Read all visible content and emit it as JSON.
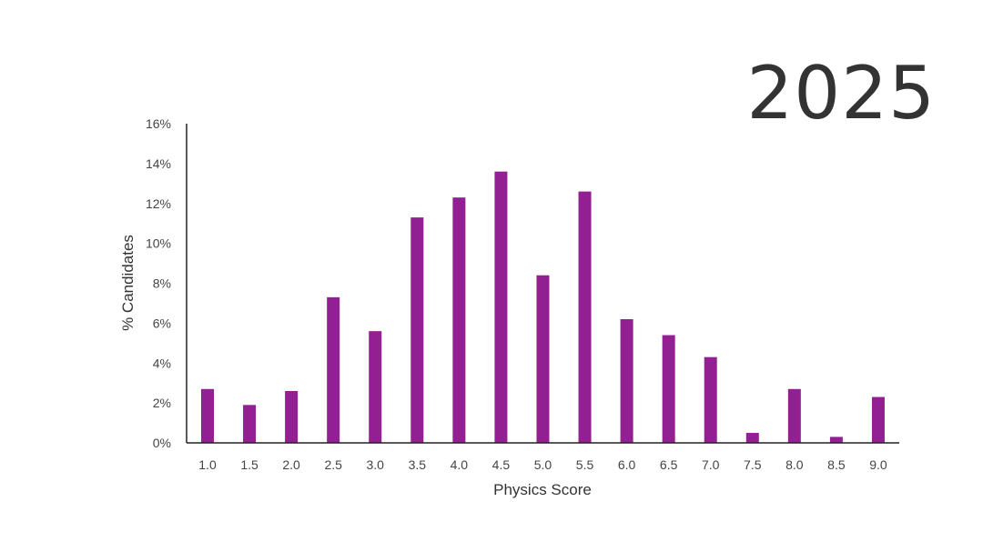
{
  "year_label": "2025",
  "chart_data": {
    "type": "bar",
    "title": "",
    "xlabel": "Physics Score",
    "ylabel": "% Candidates",
    "categories": [
      "1.0",
      "1.5",
      "2.0",
      "2.5",
      "3.0",
      "3.5",
      "4.0",
      "4.5",
      "5.0",
      "5.5",
      "6.0",
      "6.5",
      "7.0",
      "7.5",
      "8.0",
      "8.5",
      "9.0"
    ],
    "values": [
      2.7,
      1.9,
      2.6,
      7.3,
      5.6,
      11.3,
      12.3,
      13.6,
      8.4,
      12.6,
      6.2,
      5.4,
      4.3,
      0.5,
      2.7,
      0.3,
      2.3
    ],
    "ylim": [
      0,
      16
    ],
    "yticks": [
      "0%",
      "2%",
      "4%",
      "6%",
      "8%",
      "10%",
      "12%",
      "14%",
      "16%"
    ],
    "grid": false,
    "bar_color": "#932092"
  }
}
